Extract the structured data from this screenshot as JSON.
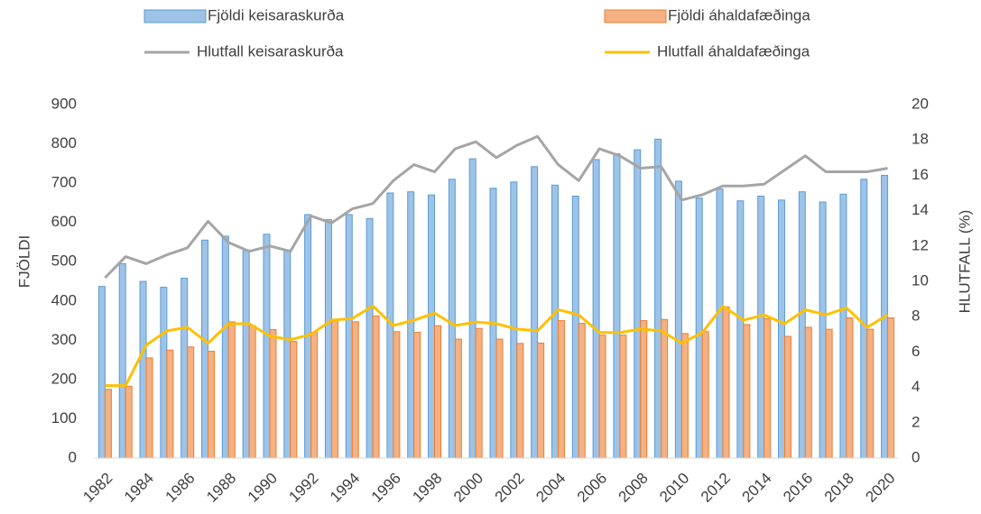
{
  "chart_data": {
    "type": "combo",
    "categories": [
      "1982",
      null,
      "1984",
      null,
      "1986",
      null,
      "1988",
      null,
      "1990",
      null,
      "1992",
      null,
      "1994",
      null,
      "1996",
      null,
      "1998",
      null,
      "2000",
      null,
      "2002",
      null,
      "2004",
      null,
      "2006",
      null,
      "2008",
      null,
      "2010",
      null,
      "2012",
      null,
      "2014",
      null,
      "2016",
      null,
      "2018",
      null,
      "2020"
    ],
    "series": [
      {
        "name": "Fjöldi keisaraskurða",
        "type": "bar",
        "color": "#9dc3e6",
        "values": [
          437,
          495,
          450,
          435,
          458,
          555,
          565,
          530,
          570,
          530,
          620,
          607,
          620,
          610,
          675,
          678,
          670,
          710,
          762,
          687,
          703,
          742,
          695,
          667,
          760,
          775,
          785,
          812,
          705,
          662,
          685,
          655,
          667,
          657,
          678,
          652,
          672,
          710,
          720
        ]
      },
      {
        "name": "Fjöldi áhaldafæðinga",
        "type": "bar",
        "color": "#f4b183",
        "values": [
          175,
          183,
          255,
          275,
          283,
          272,
          347,
          337,
          327,
          297,
          320,
          350,
          347,
          362,
          322,
          320,
          337,
          303,
          330,
          303,
          292,
          293,
          350,
          343,
          313,
          313,
          350,
          353,
          317,
          322,
          385,
          340,
          355,
          310,
          333,
          328,
          357,
          328,
          357
        ]
      },
      {
        "name": "Hlutfall keisaraskurða",
        "type": "line",
        "axis": "y2",
        "color": "#a5a5a5",
        "values": [
          10.2,
          11.4,
          11.0,
          11.5,
          11.9,
          13.4,
          12.2,
          11.7,
          12.0,
          11.7,
          13.7,
          13.3,
          14.1,
          14.4,
          15.7,
          16.6,
          16.2,
          17.5,
          17.9,
          17.0,
          17.7,
          18.2,
          16.6,
          15.7,
          17.5,
          17.1,
          16.4,
          16.5,
          14.6,
          14.9,
          15.4,
          15.4,
          15.5,
          16.3,
          17.1,
          16.2,
          16.2,
          16.2,
          16.4
        ]
      },
      {
        "name": "Hlutfall áhaldafæðinga",
        "type": "line",
        "axis": "y2",
        "color": "#ffc000",
        "values": [
          4.1,
          4.1,
          6.4,
          7.2,
          7.4,
          6.5,
          7.6,
          7.6,
          6.9,
          6.7,
          7.0,
          7.8,
          7.9,
          8.6,
          7.5,
          7.8,
          8.2,
          7.5,
          7.7,
          7.6,
          7.3,
          7.2,
          8.4,
          8.1,
          7.1,
          7.1,
          7.3,
          7.2,
          6.5,
          7.1,
          8.6,
          7.8,
          8.1,
          7.6,
          8.4,
          8.1,
          8.5,
          7.4,
          8.1
        ]
      }
    ],
    "y_label": "FJÖLDI",
    "y2_label": "HLUTFALL (%)",
    "ylim": [
      0,
      900
    ],
    "yticks": [
      0,
      100,
      200,
      300,
      400,
      500,
      600,
      700,
      800,
      900
    ],
    "y2lim": [
      0,
      20
    ],
    "y2ticks": [
      0,
      2,
      4,
      6,
      8,
      10,
      12,
      14,
      16,
      18,
      20
    ],
    "grid": false,
    "legend": "top"
  }
}
